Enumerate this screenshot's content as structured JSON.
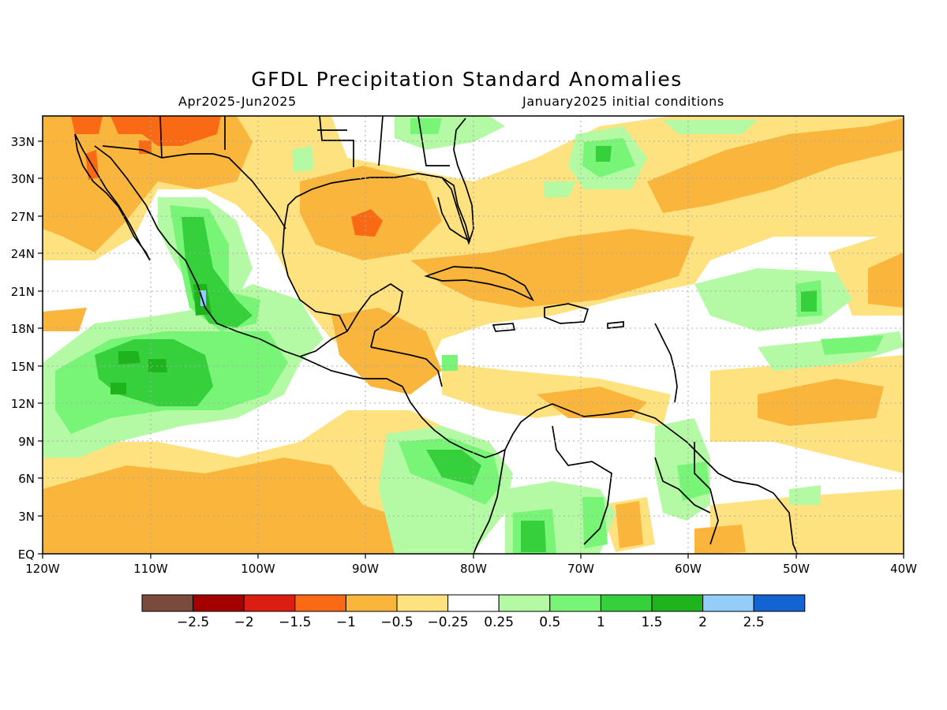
{
  "title": "GFDL Precipitation Standard Anomalies",
  "period": "Apr2025-Jun2025",
  "initial_conditions": "January2025 initial conditions",
  "lat_labels": [
    "33N",
    "30N",
    "27N",
    "24N",
    "21N",
    "18N",
    "15N",
    "12N",
    "9N",
    "6N",
    "3N",
    "EQ"
  ],
  "lon_labels": [
    "120W",
    "110W",
    "100W",
    "90W",
    "80W",
    "70W",
    "60W",
    "50W",
    "40W"
  ],
  "colorbar": {
    "colors": [
      "#7a4a3c",
      "#a50000",
      "#dc1d12",
      "#fa6914",
      "#f9b53c",
      "#fee27f",
      "#ffffff",
      "#b4f9a4",
      "#78f577",
      "#36d03c",
      "#1fb41e",
      "#94ccfa",
      "#1463d2"
    ],
    "labels": [
      "-2.5",
      "-2",
      "-1.5",
      "-1",
      "-0.5",
      "-0.25",
      "0.25",
      "0.5",
      "1",
      "1.5",
      "2",
      "2.5"
    ]
  }
}
